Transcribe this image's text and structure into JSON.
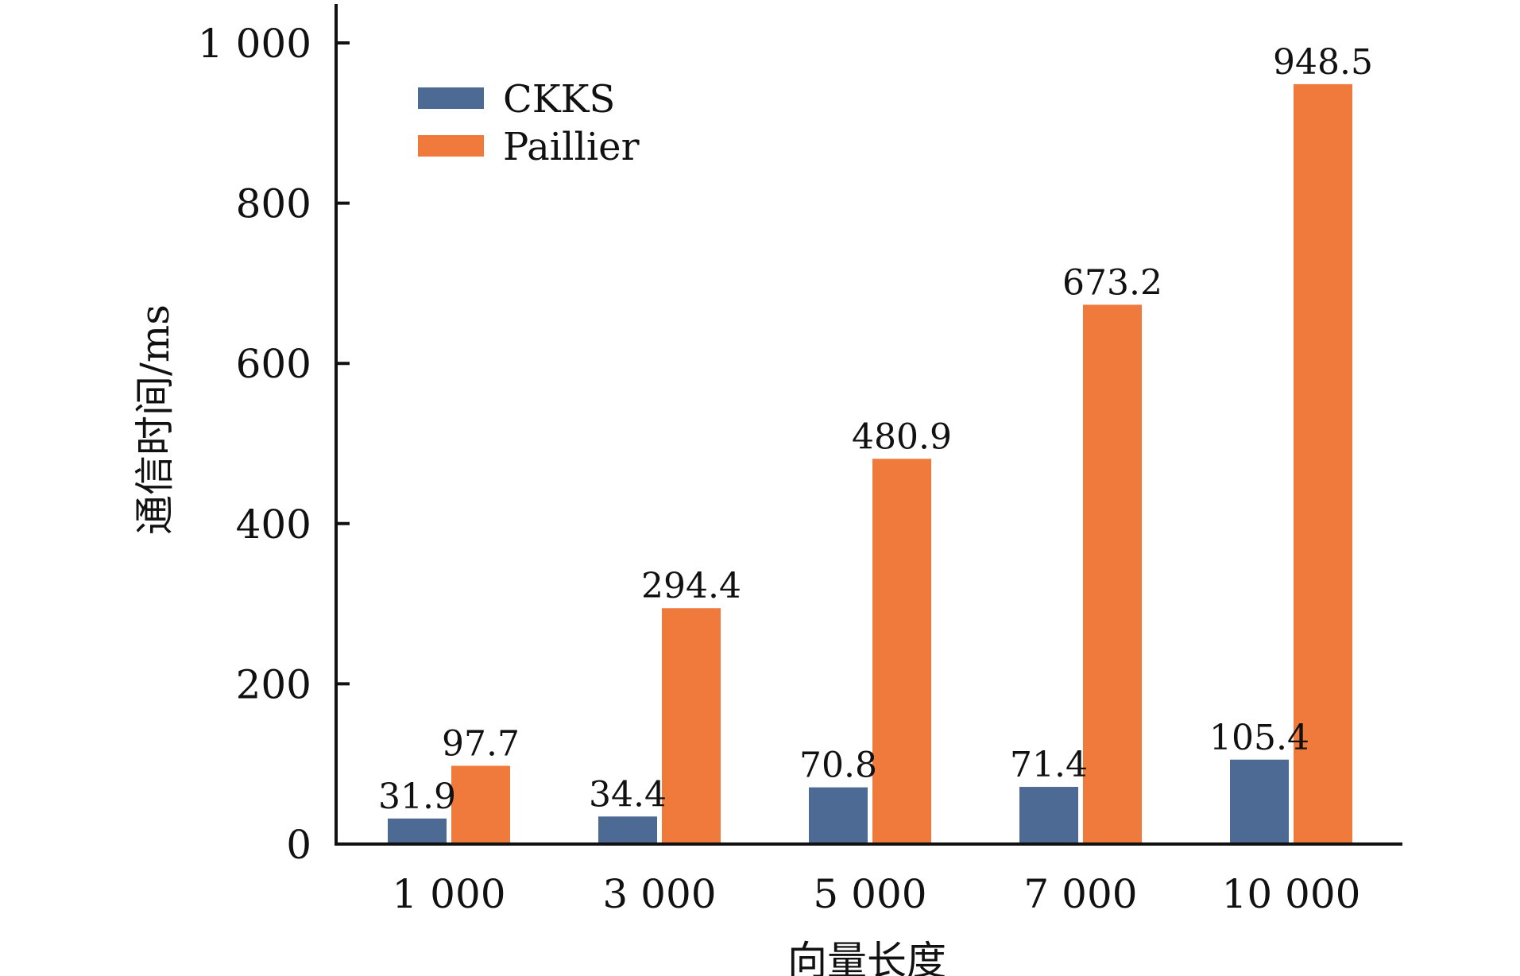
{
  "chart_data": {
    "type": "bar",
    "title": "",
    "xlabel": "向量长度",
    "ylabel": "通信时间/ms",
    "categories": [
      "1 000",
      "3 000",
      "5 000",
      "7 000",
      "10 000"
    ],
    "series": [
      {
        "name": "CKKS",
        "color": "#4d6a94",
        "values": [
          31.9,
          34.4,
          70.8,
          71.4,
          105.4
        ],
        "value_labels": [
          "31.9",
          "34.4",
          "70.8",
          "71.4",
          "105.4"
        ]
      },
      {
        "name": "Paillier",
        "color": "#ef7a3b",
        "values": [
          97.7,
          294.4,
          480.9,
          673.2,
          948.5
        ],
        "value_labels": [
          "97.7",
          "294.4",
          "480.9",
          "673.2",
          "948.5"
        ]
      }
    ],
    "ylim": [
      0,
      1000
    ],
    "yticks": [
      0,
      200,
      400,
      600,
      800,
      1000
    ],
    "ytick_labels": [
      "0",
      "200",
      "400",
      "600",
      "800",
      "1 000"
    ],
    "grid": false,
    "legend_position": "top-left"
  }
}
